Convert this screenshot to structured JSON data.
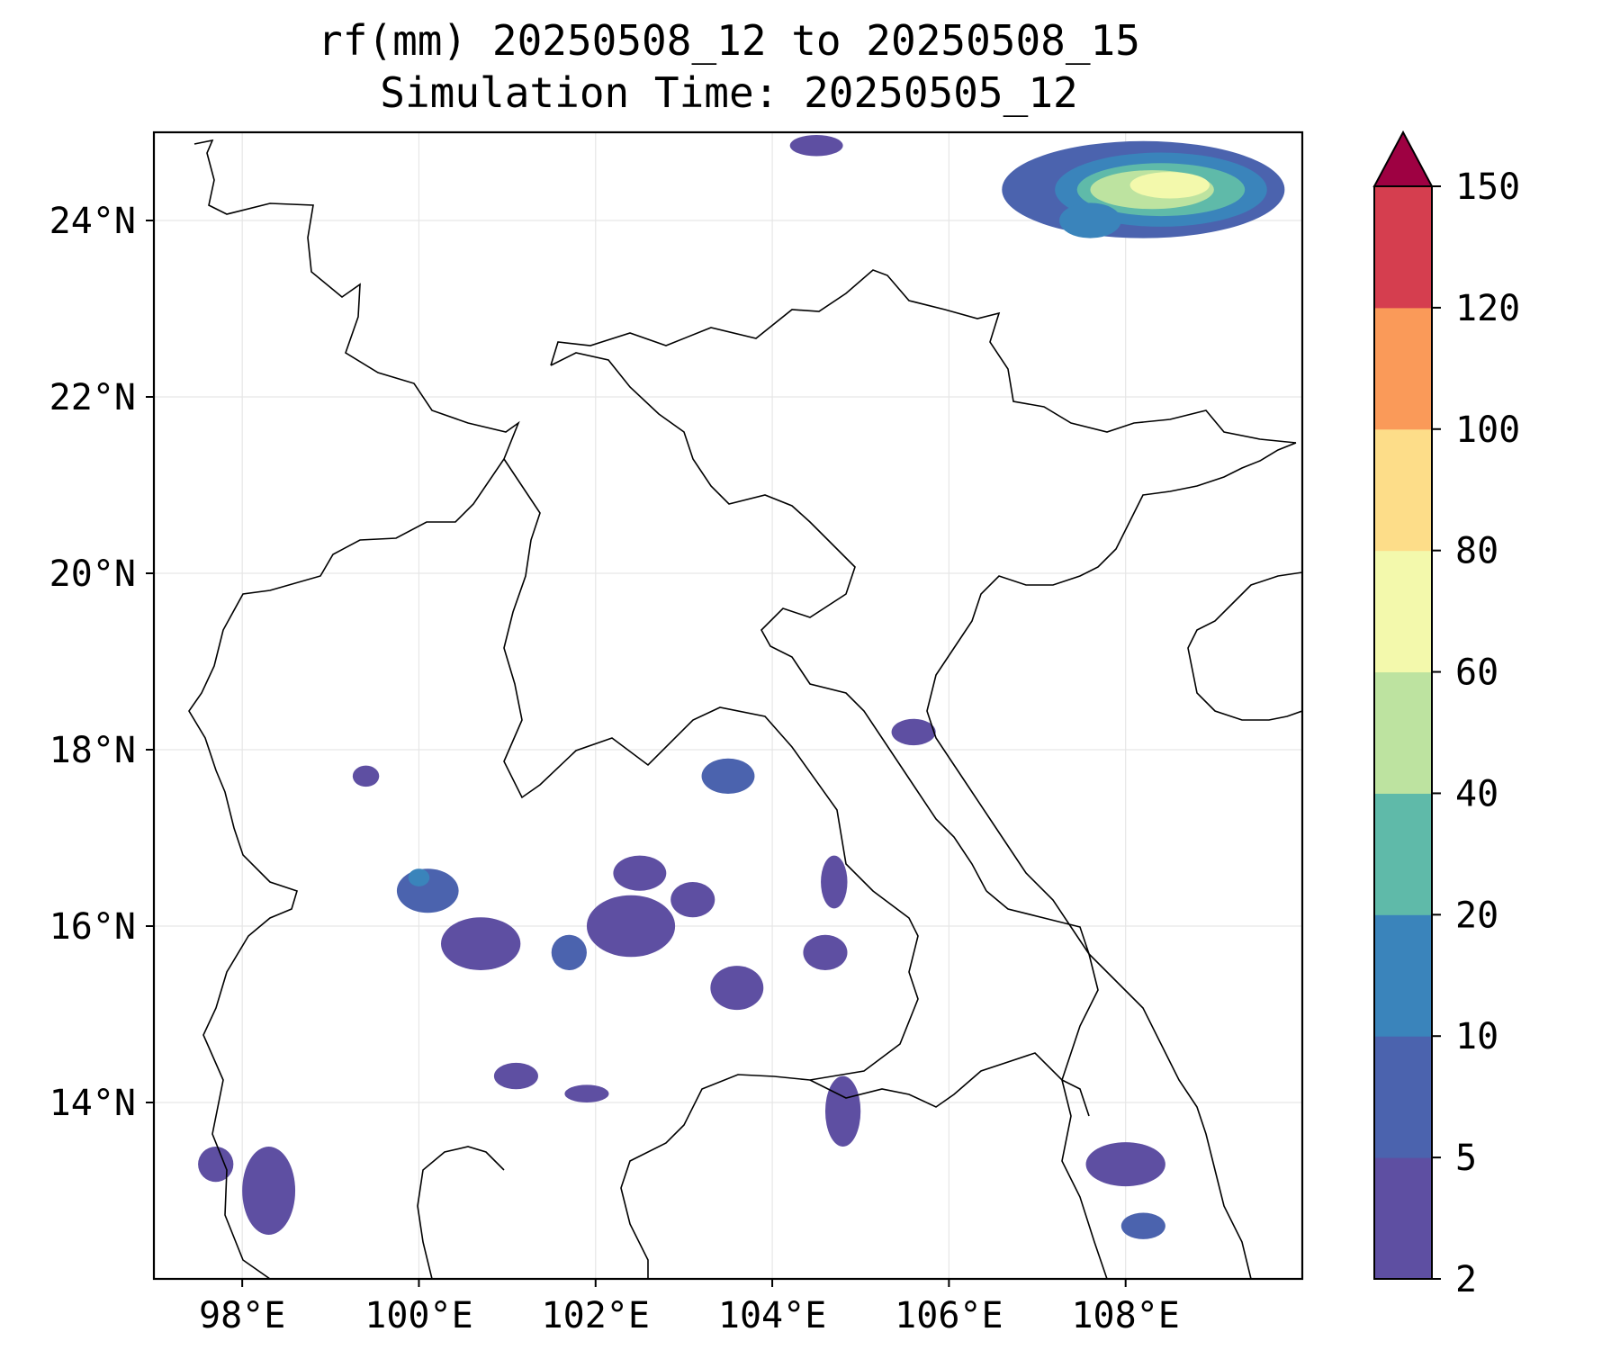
{
  "title_line1": "rf(mm) 20250508_12 to 20250508_15",
  "title_line2": "Simulation Time: 20250505_12",
  "map": {
    "lon_range": [
      97.0,
      110.0
    ],
    "lat_range": [
      12.0,
      25.0
    ],
    "lon_ticks": [
      {
        "value": 98,
        "label": "98°E"
      },
      {
        "value": 100,
        "label": "100°E"
      },
      {
        "value": 102,
        "label": "102°E"
      },
      {
        "value": 104,
        "label": "104°E"
      },
      {
        "value": 106,
        "label": "106°E"
      },
      {
        "value": 108,
        "label": "108°E"
      }
    ],
    "lat_ticks": [
      {
        "value": 14,
        "label": "14°N"
      },
      {
        "value": 16,
        "label": "16°N"
      },
      {
        "value": 18,
        "label": "18°N"
      },
      {
        "value": 20,
        "label": "20°N"
      },
      {
        "value": 22,
        "label": "22°N"
      },
      {
        "value": 24,
        "label": "24°N"
      }
    ],
    "grid": true,
    "grid_color": "#e6e6e6",
    "border_color": "#000000"
  },
  "colorbar": {
    "levels": [
      "2",
      "5",
      "10",
      "20",
      "40",
      "60",
      "80",
      "100",
      "120",
      "150"
    ],
    "colors": [
      "#5e4fa2",
      "#4b63ae",
      "#3a84bb",
      "#5fbaa9",
      "#bde3a0",
      "#f3f9ac",
      "#fddd89",
      "#fa9a59",
      "#d53e4f"
    ],
    "extend_color": "#9e0142",
    "extend": "max"
  },
  "rain_cells": [
    {
      "lon": 108.2,
      "lat": 24.35,
      "rx": 1.6,
      "ry": 0.55,
      "level": 1
    },
    {
      "lon": 108.4,
      "lat": 24.35,
      "rx": 1.2,
      "ry": 0.42,
      "level": 2
    },
    {
      "lon": 108.4,
      "lat": 24.35,
      "rx": 0.95,
      "ry": 0.3,
      "level": 3
    },
    {
      "lon": 108.3,
      "lat": 24.35,
      "rx": 0.7,
      "ry": 0.22,
      "level": 4
    },
    {
      "lon": 108.5,
      "lat": 24.4,
      "rx": 0.45,
      "ry": 0.15,
      "level": 5
    },
    {
      "lon": 107.6,
      "lat": 24.0,
      "rx": 0.35,
      "ry": 0.2,
      "level": 2
    },
    {
      "lon": 104.5,
      "lat": 24.85,
      "rx": 0.3,
      "ry": 0.12,
      "level": 0
    },
    {
      "lon": 100.1,
      "lat": 16.4,
      "rx": 0.35,
      "ry": 0.25,
      "level": 1
    },
    {
      "lon": 100.0,
      "lat": 16.55,
      "rx": 0.12,
      "ry": 0.1,
      "level": 2
    },
    {
      "lon": 100.7,
      "lat": 15.8,
      "rx": 0.45,
      "ry": 0.3,
      "level": 0
    },
    {
      "lon": 101.7,
      "lat": 15.7,
      "rx": 0.2,
      "ry": 0.2,
      "level": 1
    },
    {
      "lon": 102.4,
      "lat": 16.0,
      "rx": 0.5,
      "ry": 0.35,
      "level": 0
    },
    {
      "lon": 103.5,
      "lat": 17.7,
      "rx": 0.3,
      "ry": 0.2,
      "level": 1
    },
    {
      "lon": 108.2,
      "lat": 12.6,
      "rx": 0.25,
      "ry": 0.15,
      "level": 1
    },
    {
      "lon": 108.0,
      "lat": 13.3,
      "rx": 0.45,
      "ry": 0.25,
      "level": 0
    },
    {
      "lon": 101.1,
      "lat": 14.3,
      "rx": 0.25,
      "ry": 0.15,
      "level": 0
    },
    {
      "lon": 101.9,
      "lat": 14.1,
      "rx": 0.25,
      "ry": 0.1,
      "level": 0
    },
    {
      "lon": 103.6,
      "lat": 15.3,
      "rx": 0.3,
      "ry": 0.25,
      "level": 0
    },
    {
      "lon": 104.7,
      "lat": 16.5,
      "rx": 0.15,
      "ry": 0.3,
      "level": 0
    },
    {
      "lon": 104.6,
      "lat": 15.7,
      "rx": 0.25,
      "ry": 0.2,
      "level": 0
    },
    {
      "lon": 104.8,
      "lat": 13.9,
      "rx": 0.2,
      "ry": 0.4,
      "level": 0
    },
    {
      "lon": 98.3,
      "lat": 13.0,
      "rx": 0.3,
      "ry": 0.5,
      "level": 0
    },
    {
      "lon": 97.7,
      "lat": 13.3,
      "rx": 0.2,
      "ry": 0.2,
      "level": 0
    },
    {
      "lon": 105.6,
      "lat": 18.2,
      "rx": 0.25,
      "ry": 0.15,
      "level": 0
    },
    {
      "lon": 99.4,
      "lat": 17.7,
      "rx": 0.15,
      "ry": 0.12,
      "level": 0
    },
    {
      "lon": 102.5,
      "lat": 16.6,
      "rx": 0.3,
      "ry": 0.2,
      "level": 0
    },
    {
      "lon": 103.1,
      "lat": 16.3,
      "rx": 0.25,
      "ry": 0.2,
      "level": 0
    }
  ]
}
